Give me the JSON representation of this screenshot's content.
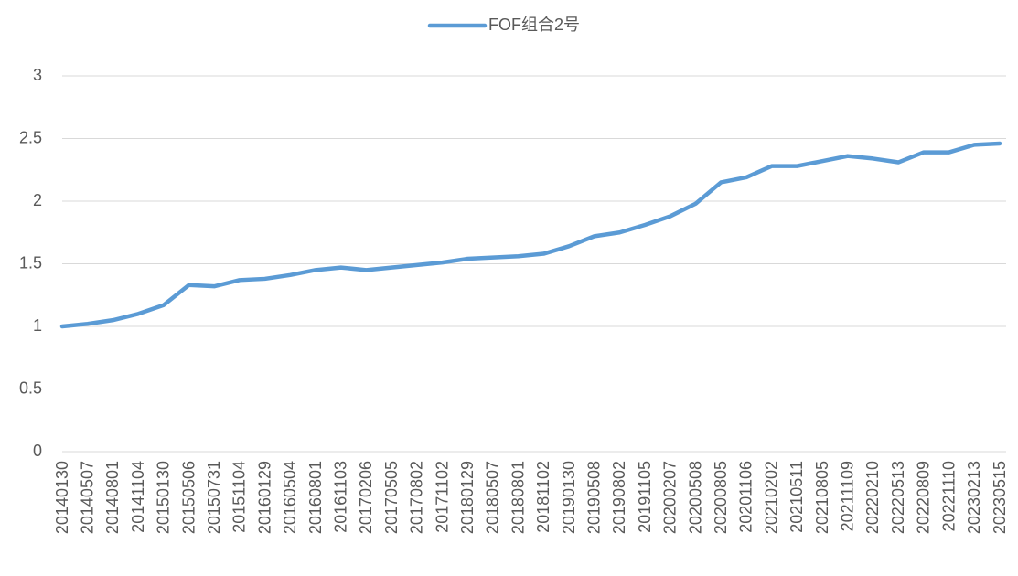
{
  "chart_data": {
    "type": "line",
    "categories": [
      "20140130",
      "20140507",
      "20140801",
      "20141104",
      "20150130",
      "20150506",
      "20150731",
      "20151104",
      "20160129",
      "20160504",
      "20160801",
      "20161103",
      "20170206",
      "20170505",
      "20170802",
      "20171102",
      "20180129",
      "20180507",
      "20180801",
      "20181102",
      "20190130",
      "20190508",
      "20190802",
      "20191105",
      "20200207",
      "20200508",
      "20200805",
      "20201106",
      "20210202",
      "20210511",
      "20210805",
      "20211109",
      "20220210",
      "20220513",
      "20220809",
      "20221110",
      "20230213",
      "20230515"
    ],
    "series": [
      {
        "name": "FOF组合2号",
        "color": "#5b9bd5",
        "values": [
          1.0,
          1.02,
          1.05,
          1.1,
          1.17,
          1.33,
          1.32,
          1.37,
          1.38,
          1.41,
          1.45,
          1.47,
          1.45,
          1.47,
          1.49,
          1.51,
          1.54,
          1.55,
          1.56,
          1.58,
          1.64,
          1.72,
          1.75,
          1.81,
          1.88,
          1.98,
          2.15,
          2.19,
          2.28,
          2.28,
          2.32,
          2.36,
          2.34,
          2.31,
          2.39,
          2.39,
          2.45,
          2.46
        ]
      }
    ],
    "ylim": [
      0,
      3
    ],
    "yticks": [
      0,
      0.5,
      1,
      1.5,
      2,
      2.5,
      3
    ],
    "grid": true,
    "legend": "top"
  }
}
